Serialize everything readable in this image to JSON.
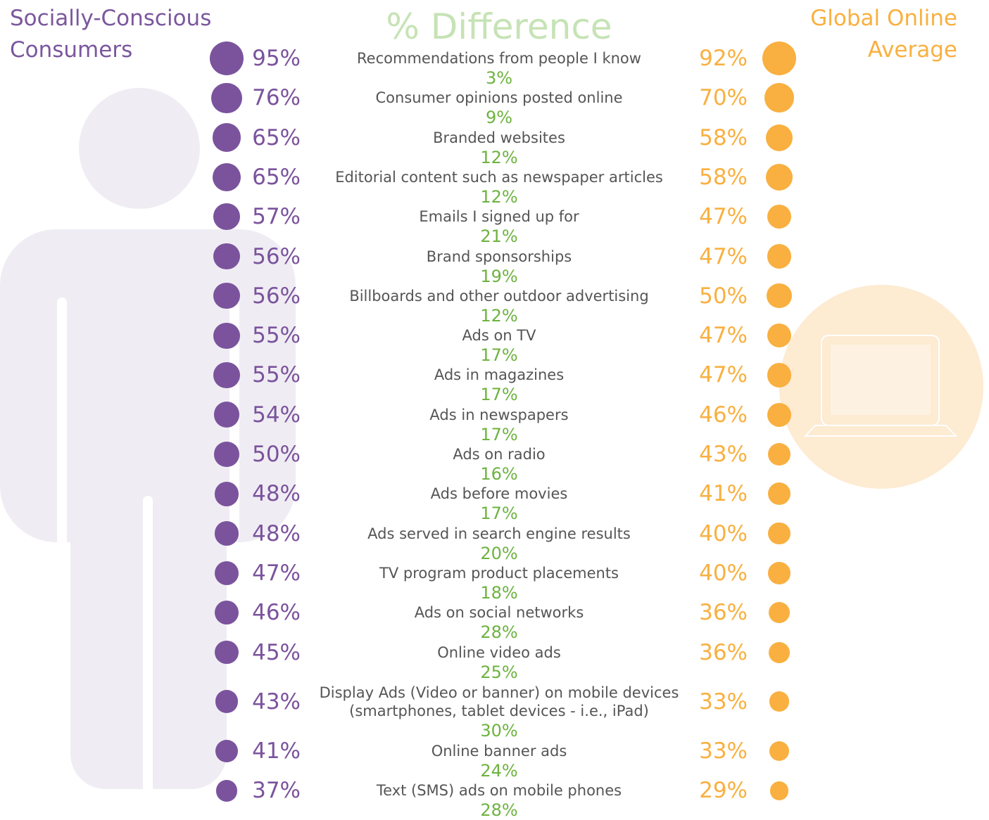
{
  "chart_data": {
    "type": "dot",
    "categories": [
      "Recommendations from people I know",
      "Consumer opinions posted online",
      "Branded websites",
      "Editorial content such as newspaper articles",
      "Emails I signed up for",
      "Brand sponsorships",
      "Billboards and other outdoor advertising",
      "Ads on TV",
      "Ads in magazines",
      "Ads in newspapers",
      "Ads on radio",
      "Ads before movies",
      "Ads served in search engine results",
      "TV program product placements",
      "Ads on social networks",
      "Online video ads",
      "Display Ads (Video or banner) on mobile devices\n(smartphones, tablet devices - i.e., iPad)",
      "Online banner ads",
      "Text (SMS) ads on mobile phones"
    ],
    "series": [
      {
        "name": "Socially-Conscious\nConsumers",
        "color": "#7b539d",
        "values": [
          95,
          76,
          65,
          65,
          57,
          56,
          56,
          55,
          55,
          54,
          50,
          48,
          48,
          47,
          46,
          45,
          43,
          41,
          37
        ],
        "value_labels": [
          "95%",
          "76%",
          "65%",
          "65%",
          "57%",
          "56%",
          "56%",
          "55%",
          "55%",
          "54%",
          "50%",
          "48%",
          "48%",
          "47%",
          "46%",
          "45%",
          "43%",
          "41%",
          "37%"
        ]
      },
      {
        "name": "Global Online\nAverage",
        "color": "#f9b040",
        "values": [
          92,
          70,
          58,
          58,
          47,
          47,
          50,
          47,
          47,
          46,
          43,
          41,
          40,
          40,
          36,
          36,
          33,
          33,
          29
        ],
        "value_labels": [
          "92%",
          "70%",
          "58%",
          "58%",
          "47%",
          "47%",
          "50%",
          "47%",
          "47%",
          "46%",
          "43%",
          "41%",
          "40%",
          "40%",
          "36%",
          "36%",
          "33%",
          "33%",
          "29%"
        ]
      }
    ],
    "difference": {
      "name": "% Difference",
      "labels": [
        "3%",
        "9%",
        "12%",
        "12%",
        "21%",
        "19%",
        "12%",
        "17%",
        "17%",
        "17%",
        "16%",
        "17%",
        "20%",
        "18%",
        "28%",
        "25%",
        "30%",
        "24%",
        "28%"
      ]
    }
  }
}
